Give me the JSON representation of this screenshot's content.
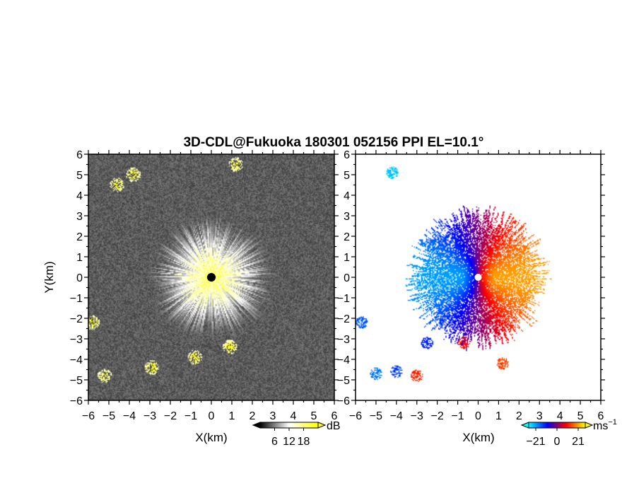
{
  "title": "3D-CDL@Fukuoka 180301 052156 PPI EL=10.1°",
  "chart_data": [
    {
      "type": "heatmap",
      "panel": "snr",
      "title": "",
      "xlabel": "X(km)",
      "ylabel": "Y(km)",
      "xlim": [
        -6,
        6
      ],
      "ylim": [
        -6,
        6
      ],
      "x_ticks": [
        -6,
        -5,
        -4,
        -3,
        -2,
        -1,
        0,
        1,
        2,
        3,
        4,
        5,
        6
      ],
      "y_ticks": [
        -6,
        -5,
        -4,
        -3,
        -2,
        -1,
        0,
        1,
        2,
        3,
        4,
        5,
        6
      ],
      "colorbar": {
        "unit": "dB",
        "ticks": [
          6,
          12,
          18
        ],
        "range": [
          0,
          24
        ],
        "colors": [
          "#000000",
          "#ffffff",
          "#ffff00"
        ]
      },
      "radar_center": [
        0,
        0
      ],
      "echo_radius_km": 3.2,
      "features": [
        {
          "x": -3.8,
          "y": 5.0,
          "strength": 0.9
        },
        {
          "x": -4.6,
          "y": 4.5,
          "strength": 0.8
        },
        {
          "x": 1.2,
          "y": 5.5,
          "strength": 0.7
        },
        {
          "x": -5.8,
          "y": -2.2,
          "strength": 0.9
        },
        {
          "x": -5.2,
          "y": -4.8,
          "strength": 0.6
        },
        {
          "x": -2.9,
          "y": -4.4,
          "strength": 1.0
        },
        {
          "x": 0.9,
          "y": -3.4,
          "strength": 1.0
        },
        {
          "x": -0.8,
          "y": -3.9,
          "strength": 0.9
        }
      ]
    },
    {
      "type": "heatmap",
      "panel": "doppler_velocity",
      "title": "",
      "xlabel": "X(km)",
      "ylabel": "",
      "xlim": [
        -6,
        6
      ],
      "ylim": [
        -6,
        6
      ],
      "x_ticks": [
        -6,
        -5,
        -4,
        -3,
        -2,
        -1,
        0,
        1,
        2,
        3,
        4,
        5,
        6
      ],
      "y_ticks": [
        -6,
        -5,
        -4,
        -3,
        -2,
        -1,
        0,
        1,
        2,
        3,
        4,
        5,
        6
      ],
      "colorbar": {
        "unit": "ms",
        "unit_exponent": "−1",
        "ticks": [
          -21,
          0,
          21
        ],
        "range": [
          -28,
          28
        ],
        "colors": [
          "#00ffff",
          "#0000ff",
          "#ff0000",
          "#ffff00"
        ]
      },
      "radar_center": [
        0,
        0
      ],
      "echo_radius_km": 3.3,
      "velocity_pattern": "receding positive east of radar, approaching negative west of radar",
      "max_speed_ms": 21,
      "features": [
        {
          "x": -4.2,
          "y": 5.1,
          "value": -24
        },
        {
          "x": -5.7,
          "y": -2.2,
          "value": -16
        },
        {
          "x": -5.0,
          "y": -4.7,
          "value": -18
        },
        {
          "x": -3.0,
          "y": -4.8,
          "value": 12
        },
        {
          "x": -4.0,
          "y": -4.6,
          "value": -14
        },
        {
          "x": -2.5,
          "y": -3.2,
          "value": -12
        },
        {
          "x": 1.2,
          "y": -4.2,
          "value": 14
        },
        {
          "x": -0.7,
          "y": -3.2,
          "value": 10
        }
      ]
    }
  ]
}
